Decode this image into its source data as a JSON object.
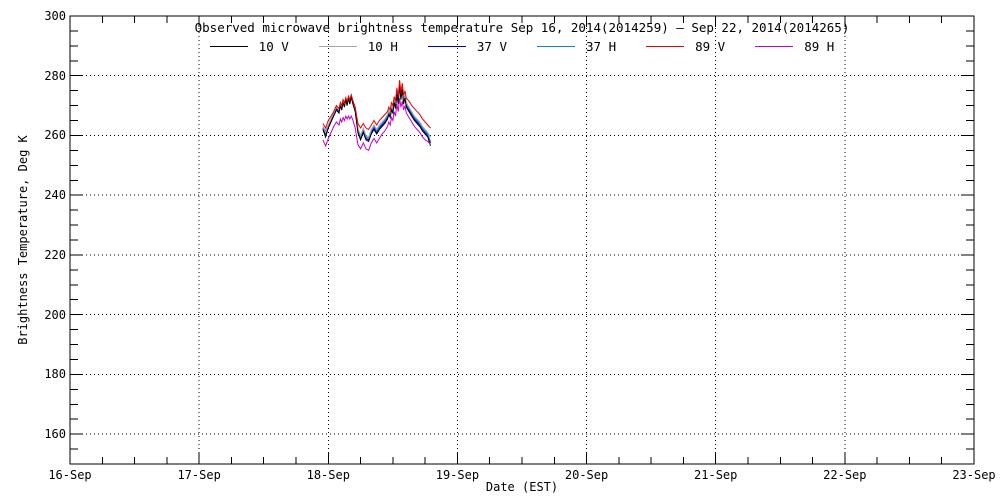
{
  "figure": {
    "background": "#ffffff",
    "axis_color": "#000000"
  },
  "chart_data": {
    "type": "line",
    "title": "Observed microwave brightness temperature Sep 16, 2014(2014259) – Sep 22, 2014(2014265)",
    "xlabel": "Date (EST)",
    "ylabel": "Brightness Temperature, Deg K",
    "grid": "dotted lines at every major tick, both axes",
    "legend_position": "top center, single row",
    "x_axis": {
      "tick_labels": [
        "16-Sep",
        "17-Sep",
        "18-Sep",
        "19-Sep",
        "20-Sep",
        "21-Sep",
        "22-Sep",
        "23-Sep"
      ],
      "days_span": 7,
      "minor_ticks_per_day": 4
    },
    "y_axis": {
      "ylim": [
        150,
        300
      ],
      "major_ticks": [
        160,
        180,
        200,
        220,
        240,
        260,
        280,
        300
      ],
      "minor_step": 5
    },
    "legend": [
      {
        "label": "10 V",
        "color": "#000000"
      },
      {
        "label": "10 H",
        "color": "#a6a6a6"
      },
      {
        "label": "37 V",
        "color": "#0000cd"
      },
      {
        "label": "37 H",
        "color": "#1082dc"
      },
      {
        "label": "89 V",
        "color": "#ee0000"
      },
      {
        "label": "89 H",
        "color": "#c800c8"
      }
    ],
    "x_epoch_note": "hours relative to 18-Sep 00:00 EST",
    "x_hours": [
      -1,
      -0.5,
      0,
      0.5,
      1,
      1.5,
      2,
      2.25,
      2.5,
      2.75,
      3,
      3.25,
      3.5,
      3.75,
      4,
      4.25,
      4.5,
      5,
      5.5,
      6,
      6.5,
      7,
      7.5,
      8,
      8.5,
      9,
      9.5,
      10,
      10.5,
      11,
      11.25,
      11.5,
      11.75,
      12,
      12.25,
      12.5,
      12.75,
      13,
      13.25,
      13.5,
      13.75,
      14,
      14.25,
      14.5,
      15,
      15.5,
      16,
      16.5,
      17,
      17.5,
      18,
      18.5,
      19
    ],
    "series": [
      {
        "name": "37 V",
        "color": "#0000cd",
        "values": [
          262.5,
          260.5,
          263.0,
          265.0,
          267.0,
          269.0,
          268.0,
          270.5,
          269.0,
          271.5,
          270.0,
          272.5,
          270.5,
          273.0,
          271.0,
          273.5,
          271.5,
          268.5,
          261.5,
          259.0,
          261.5,
          259.0,
          258.5,
          261.0,
          262.5,
          261.0,
          262.5,
          263.5,
          264.5,
          266.0,
          267.5,
          266.5,
          269.0,
          268.0,
          271.5,
          269.5,
          274.5,
          271.0,
          277.0,
          272.5,
          276.0,
          271.0,
          273.0,
          270.0,
          268.5,
          267.0,
          265.5,
          264.5,
          263.5,
          262.0,
          261.0,
          260.0,
          257.5
        ]
      },
      {
        "name": "37 H",
        "color": "#1082dc",
        "values": [
          263.0,
          261.5,
          263.5,
          265.5,
          267.5,
          269.5,
          268.5,
          270.5,
          269.5,
          271.5,
          270.5,
          272.5,
          271.0,
          273.0,
          271.5,
          273.5,
          272.0,
          269.0,
          262.0,
          259.5,
          262.0,
          259.5,
          259.0,
          261.5,
          263.0,
          261.5,
          263.0,
          264.0,
          265.0,
          266.5,
          268.0,
          267.0,
          269.5,
          268.5,
          272.0,
          270.0,
          275.0,
          271.5,
          277.5,
          273.0,
          276.5,
          271.5,
          273.5,
          270.5,
          269.0,
          267.5,
          266.0,
          265.0,
          264.0,
          262.5,
          261.5,
          260.5,
          258.0
        ]
      },
      {
        "name": "10 H",
        "color": "#a6a6a6",
        "values": [
          263.0,
          261.0,
          263.5,
          265.5,
          267.5,
          269.5,
          268.5,
          271.0,
          269.5,
          272.0,
          270.5,
          273.0,
          271.0,
          273.5,
          271.5,
          274.0,
          272.0,
          269.0,
          262.5,
          260.0,
          262.5,
          260.0,
          259.5,
          262.0,
          263.5,
          262.0,
          263.5,
          264.5,
          265.5,
          267.0,
          268.5,
          267.5,
          270.0,
          269.0,
          272.5,
          270.5,
          275.5,
          272.0,
          278.0,
          273.5,
          277.0,
          272.0,
          274.0,
          271.0,
          269.5,
          268.0,
          266.5,
          265.5,
          264.5,
          263.0,
          262.0,
          261.0,
          259.5
        ]
      },
      {
        "name": "10 V",
        "color": "#000000",
        "values": [
          262.0,
          259.5,
          262.5,
          264.5,
          266.5,
          268.5,
          267.5,
          270.0,
          268.5,
          271.0,
          269.5,
          272.0,
          270.0,
          272.5,
          270.5,
          273.0,
          271.0,
          268.0,
          261.0,
          258.5,
          261.0,
          258.5,
          258.0,
          260.5,
          262.0,
          260.5,
          262.0,
          263.0,
          264.0,
          265.5,
          267.0,
          266.0,
          268.5,
          267.5,
          271.0,
          269.0,
          274.0,
          270.5,
          277.0,
          272.0,
          275.5,
          270.5,
          272.5,
          269.5,
          268.0,
          266.5,
          265.0,
          264.0,
          263.0,
          261.5,
          260.5,
          259.5,
          256.5
        ]
      },
      {
        "name": "89 V",
        "color": "#ee0000",
        "values": [
          264.0,
          262.5,
          265.0,
          266.5,
          268.0,
          270.0,
          269.0,
          271.0,
          270.0,
          272.0,
          271.0,
          272.5,
          271.5,
          273.0,
          272.0,
          273.5,
          272.0,
          269.5,
          264.0,
          262.5,
          264.0,
          262.5,
          262.0,
          263.5,
          265.0,
          263.5,
          265.0,
          266.0,
          267.0,
          268.0,
          269.5,
          268.5,
          271.0,
          270.0,
          273.0,
          271.5,
          276.0,
          273.0,
          278.5,
          274.5,
          277.5,
          273.5,
          275.0,
          272.5,
          271.5,
          270.0,
          269.0,
          268.0,
          267.0,
          265.5,
          264.5,
          263.5,
          262.5
        ]
      },
      {
        "name": "89 H",
        "color": "#c800c8",
        "values": [
          258.5,
          256.5,
          259.0,
          261.0,
          263.0,
          264.5,
          263.5,
          265.5,
          264.5,
          266.0,
          265.0,
          266.5,
          265.5,
          266.5,
          265.5,
          266.5,
          265.5,
          262.5,
          257.0,
          255.5,
          257.5,
          255.5,
          255.0,
          257.5,
          259.0,
          257.5,
          259.0,
          260.5,
          261.5,
          263.0,
          264.5,
          263.5,
          266.0,
          265.0,
          268.0,
          266.5,
          270.5,
          268.0,
          272.5,
          269.5,
          271.5,
          268.5,
          270.0,
          267.5,
          266.0,
          264.5,
          263.0,
          262.0,
          261.0,
          259.5,
          258.5,
          258.0,
          257.0
        ]
      }
    ]
  }
}
